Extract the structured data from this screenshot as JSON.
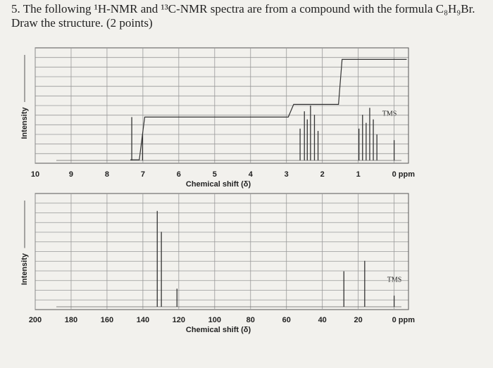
{
  "question": {
    "line1": "5. The following ¹H-NMR and ¹³C-NMR spectra are from a compound with the formula C₈H₉Br.",
    "line2": "Draw the structure. (2 points)"
  },
  "chart_data": [
    {
      "type": "stem",
      "y_label": "Intensity",
      "x_label": "Chemical shift (δ)",
      "annotation": "TMS",
      "color": "#333333",
      "xlim": [
        10.0,
        -0.4
      ],
      "ylim": [
        0,
        100
      ],
      "xticks": [
        10,
        9,
        8,
        7,
        6,
        5,
        4,
        3,
        2,
        1,
        {
          "value": 0,
          "label": "0 ppm"
        }
      ],
      "peaks": {
        "x": [
          7.31,
          7.01,
          2.62,
          2.5,
          2.42,
          2.33,
          2.22,
          2.12,
          0.98,
          0.88,
          0.78,
          0.68,
          0.58,
          0.48,
          0.0
        ],
        "values": [
          40,
          25,
          30,
          45,
          38,
          50,
          42,
          28,
          30,
          42,
          35,
          48,
          38,
          25,
          20
        ]
      },
      "integral": {
        "x": [
          7.35,
          7.1,
          6.95,
          2.95,
          2.8,
          1.55,
          1.45,
          -0.35
        ],
        "values": [
          3,
          3,
          40,
          40,
          51,
          51,
          90,
          90
        ]
      }
    },
    {
      "type": "stem",
      "y_label": "Intensity",
      "x_label": "Chemical shift (δ)",
      "annotation": "TMS",
      "color": "#333333",
      "xlim": [
        200,
        -8
      ],
      "ylim": [
        0,
        100
      ],
      "xticks": [
        200,
        180,
        160,
        140,
        120,
        100,
        80,
        60,
        40,
        20,
        {
          "value": 0,
          "label": "0 ppm"
        }
      ],
      "peaks": {
        "x": [
          132,
          129.7,
          121,
          28,
          16.4,
          0
        ],
        "values": [
          85,
          67,
          18,
          33,
          42,
          12
        ]
      }
    }
  ]
}
